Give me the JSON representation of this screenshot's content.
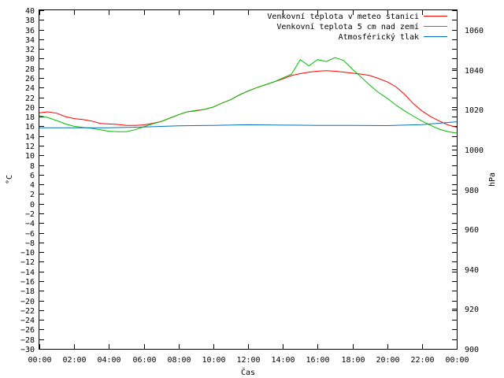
{
  "chart_data": {
    "type": "line",
    "xlabel": "Čas",
    "ylabel": "°C",
    "y2label": "hPa",
    "xlim": [
      0,
      24
    ],
    "ylim": [
      -30,
      40
    ],
    "y2lim": [
      900,
      1070
    ],
    "x_ticks": [
      "00:00",
      "02:00",
      "04:00",
      "06:00",
      "08:00",
      "10:00",
      "12:00",
      "14:00",
      "16:00",
      "18:00",
      "20:00",
      "22:00",
      "00:00"
    ],
    "y_ticks": [
      -30,
      -28,
      -26,
      -24,
      -22,
      -20,
      -18,
      -16,
      -14,
      -12,
      -10,
      -8,
      -6,
      -4,
      -2,
      0,
      2,
      4,
      6,
      8,
      10,
      12,
      14,
      16,
      18,
      20,
      22,
      24,
      26,
      28,
      30,
      32,
      34,
      36,
      38,
      40
    ],
    "y2_ticks": [
      900,
      920,
      940,
      960,
      980,
      1000,
      1020,
      1040,
      1060
    ],
    "y2_tick_labels": [
      "900",
      "920",
      "940",
      "960",
      "980",
      "1000",
      "1020",
      "1040",
      "1060"
    ],
    "legend_position": "top-right",
    "grid": false,
    "series": [
      {
        "name": "Venkovní teplota v meteo stanici",
        "color": "#ff0000",
        "axis": "left",
        "x": [
          0,
          0.5,
          1,
          1.5,
          2,
          2.5,
          3,
          3.5,
          4,
          4.5,
          5,
          5.5,
          6,
          6.5,
          7,
          7.5,
          8,
          8.5,
          9,
          9.5,
          10,
          10.5,
          11,
          11.5,
          12,
          12.5,
          13,
          13.5,
          14,
          14.5,
          15,
          15.5,
          16,
          16.5,
          17,
          17.5,
          18,
          18.5,
          19,
          19.5,
          20,
          20.5,
          21,
          21.5,
          22,
          22.5,
          23,
          23.5,
          24
        ],
        "y": [
          18.8,
          19,
          18.7,
          18,
          17.6,
          17.4,
          17.1,
          16.6,
          16.5,
          16.4,
          16.2,
          16.2,
          16.3,
          16.6,
          17,
          17.7,
          18.4,
          19,
          19.2,
          19.5,
          20,
          20.8,
          21.5,
          22.5,
          23.3,
          24,
          24.6,
          25.2,
          25.8,
          26.5,
          26.9,
          27.2,
          27.4,
          27.5,
          27.4,
          27.2,
          27.0,
          26.8,
          26.5,
          25.9,
          25.2,
          24.2,
          22.6,
          20.7,
          19.2,
          18.0,
          17.1,
          16.3,
          15.8
        ]
      },
      {
        "name": "Venkovní teplota 5 cm nad zemí",
        "color": "#00c000",
        "axis": "left",
        "x": [
          0,
          0.5,
          1,
          1.5,
          2,
          2.5,
          3,
          3.5,
          4,
          4.5,
          5,
          5.5,
          6,
          6.5,
          7,
          7.5,
          8,
          8.5,
          9,
          9.5,
          10,
          10.5,
          11,
          11.5,
          12,
          12.5,
          13,
          13.5,
          14,
          14.5,
          15,
          15.5,
          16,
          16.5,
          17,
          17.5,
          18,
          18.5,
          19,
          19.5,
          20,
          20.5,
          21,
          21.5,
          22,
          22.5,
          23,
          23.5,
          24
        ],
        "y": [
          18.2,
          17.8,
          17.2,
          16.5,
          16,
          15.8,
          15.6,
          15.3,
          15,
          14.9,
          14.9,
          15.3,
          15.9,
          16.5,
          17,
          17.7,
          18.4,
          19,
          19.3,
          19.5,
          20,
          20.8,
          21.5,
          22.5,
          23.3,
          24,
          24.6,
          25.2,
          26,
          26.8,
          29.8,
          28.5,
          29.8,
          29.4,
          30.2,
          29.6,
          27.8,
          26.2,
          24.5,
          23,
          21.8,
          20.4,
          19.2,
          18.1,
          17.1,
          16.2,
          15.4,
          14.9,
          14.6
        ]
      },
      {
        "name": "Atmosférický tlak",
        "color": "#0070c0",
        "axis": "right",
        "x": [
          0,
          2,
          4,
          6,
          8,
          10,
          12,
          14,
          16,
          18,
          20,
          22,
          24
        ],
        "y": [
          1011,
          1011,
          1011,
          1011.4,
          1012,
          1012.2,
          1012.5,
          1012.3,
          1012.2,
          1012.2,
          1012.1,
          1012.6,
          1014
        ]
      }
    ]
  }
}
